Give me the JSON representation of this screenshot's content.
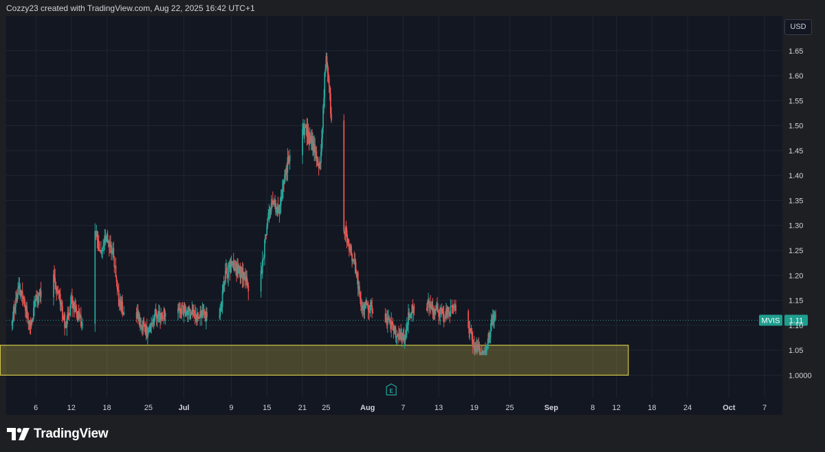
{
  "header": {
    "caption": "Cozzy23 created with TradingView.com, Aug 22, 2025 16:42 UTC+1"
  },
  "currency": "USD",
  "brand": {
    "name": "TradingView"
  },
  "colors": {
    "up": "#26a69a",
    "down": "#ef5350",
    "zone": "#d4c64a",
    "background": "#131722",
    "grid": "#222631",
    "axis_text": "#d1d4dc",
    "badge": "#1f9e8f"
  },
  "chart_data": {
    "type": "candlestick",
    "symbol": "MVIS",
    "last_price": "1.11",
    "ylim": [
      0.955,
      1.72
    ],
    "y_ticks": [
      "1.65",
      "1.60",
      "1.55",
      "1.50",
      "1.45",
      "1.40",
      "1.35",
      "1.30",
      "1.25",
      "1.20",
      "1.15",
      "1.10",
      "1.05",
      "1.0000"
    ],
    "y_tick_values": [
      1.65,
      1.6,
      1.55,
      1.5,
      1.45,
      1.4,
      1.35,
      1.3,
      1.25,
      1.2,
      1.15,
      1.1,
      1.05,
      1.0
    ],
    "x_ticks": [
      "6",
      "12",
      "18",
      "25",
      "Jul",
      "9",
      "15",
      "21",
      "25",
      "Aug",
      "7",
      "13",
      "19",
      "25",
      "Sep",
      "8",
      "12",
      "18",
      "24",
      "Oct",
      "7"
    ],
    "x_tick_dates": [
      "2025-06-06",
      "2025-06-12",
      "2025-06-18",
      "2025-06-25",
      "2025-07-01",
      "2025-07-09",
      "2025-07-15",
      "2025-07-21",
      "2025-07-25",
      "2025-08-01",
      "2025-08-07",
      "2025-08-13",
      "2025-08-19",
      "2025-08-25",
      "2025-09-01",
      "2025-09-08",
      "2025-09-12",
      "2025-09-18",
      "2025-09-24",
      "2025-10-01",
      "2025-10-07"
    ],
    "x_range": [
      "2025-06-01",
      "2025-10-10"
    ],
    "grid": true,
    "support_zone": {
      "top": 1.06,
      "bottom": 1.0,
      "start": "2025-05-31",
      "end": "2025-09-14"
    },
    "earnings_marker": {
      "date": "2025-08-05",
      "label": "E"
    },
    "price_path": [
      [
        "2025-06-01",
        1.1
      ],
      [
        "2025-06-02",
        1.12
      ],
      [
        "2025-06-03",
        1.17
      ],
      [
        "2025-06-04",
        1.15
      ],
      [
        "2025-06-05",
        1.1
      ],
      [
        "2025-06-06",
        1.15
      ],
      [
        "2025-06-09",
        1.2
      ],
      [
        "2025-06-10",
        1.15
      ],
      [
        "2025-06-11",
        1.1
      ],
      [
        "2025-06-12",
        1.15
      ],
      [
        "2025-06-13",
        1.12
      ],
      [
        "2025-06-15",
        1.08
      ],
      [
        "2025-06-16",
        1.28
      ],
      [
        "2025-06-17",
        1.25
      ],
      [
        "2025-06-18",
        1.28
      ],
      [
        "2025-06-19",
        1.25
      ],
      [
        "2025-06-20",
        1.15
      ],
      [
        "2025-06-22",
        1.1
      ],
      [
        "2025-06-23",
        1.12
      ],
      [
        "2025-06-25",
        1.08
      ],
      [
        "2025-06-26",
        1.12
      ],
      [
        "2025-06-28",
        1.12
      ],
      [
        "2025-07-01",
        1.13
      ],
      [
        "2025-07-03",
        1.12
      ],
      [
        "2025-07-05",
        1.12
      ],
      [
        "2025-07-07",
        1.12
      ],
      [
        "2025-07-08",
        1.2
      ],
      [
        "2025-07-09",
        1.22
      ],
      [
        "2025-07-11",
        1.2
      ],
      [
        "2025-07-13",
        1.14
      ],
      [
        "2025-07-14",
        1.2
      ],
      [
        "2025-07-15",
        1.3
      ],
      [
        "2025-07-16",
        1.35
      ],
      [
        "2025-07-17",
        1.32
      ],
      [
        "2025-07-18",
        1.4
      ],
      [
        "2025-07-19",
        1.45
      ],
      [
        "2025-07-20",
        1.35
      ],
      [
        "2025-07-21",
        1.5
      ],
      [
        "2025-07-22",
        1.48
      ],
      [
        "2025-07-23",
        1.45
      ],
      [
        "2025-07-24",
        1.42
      ],
      [
        "2025-07-25",
        1.65
      ],
      [
        "2025-07-26",
        1.5
      ],
      [
        "2025-07-27",
        1.4
      ],
      [
        "2025-07-28",
        1.3
      ],
      [
        "2025-07-29",
        1.25
      ],
      [
        "2025-07-30",
        1.22
      ],
      [
        "2025-07-31",
        1.13
      ],
      [
        "2025-08-01",
        1.14
      ],
      [
        "2025-08-03",
        1.12
      ],
      [
        "2025-08-05",
        1.1
      ],
      [
        "2025-08-06",
        1.08
      ],
      [
        "2025-08-07",
        1.07
      ],
      [
        "2025-08-08",
        1.12
      ],
      [
        "2025-08-09",
        1.14
      ],
      [
        "2025-08-10",
        1.15
      ],
      [
        "2025-08-12",
        1.13
      ],
      [
        "2025-08-14",
        1.12
      ],
      [
        "2025-08-16",
        1.14
      ],
      [
        "2025-08-17",
        1.13
      ],
      [
        "2025-08-18",
        1.09
      ],
      [
        "2025-08-19",
        1.06
      ],
      [
        "2025-08-20",
        1.05
      ],
      [
        "2025-08-21",
        1.05
      ],
      [
        "2025-08-22",
        1.11
      ]
    ],
    "price_range": {
      "min": 1.04,
      "max": 1.7
    }
  }
}
